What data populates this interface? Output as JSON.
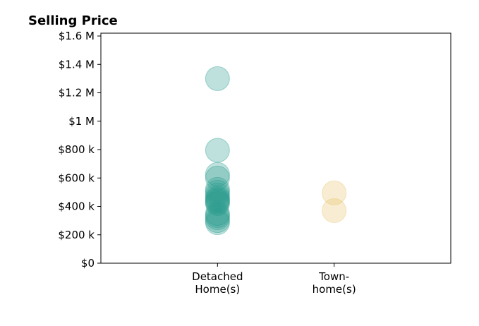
{
  "chart_data": {
    "type": "scatter",
    "title": "Selling Price",
    "xlabel": "",
    "ylabel": "",
    "categories": [
      {
        "label_lines": [
          "Detached",
          "Home(s)"
        ],
        "color": "#2a9d8f"
      },
      {
        "label_lines": [
          "Town-",
          "home(s)"
        ],
        "color": "#e9c46a"
      }
    ],
    "y_ticks": [
      {
        "value": 0,
        "label": "$0"
      },
      {
        "value": 200000,
        "label": "$200 k"
      },
      {
        "value": 400000,
        "label": "$400 k"
      },
      {
        "value": 600000,
        "label": "$600 k"
      },
      {
        "value": 800000,
        "label": "$800 k"
      },
      {
        "value": 1000000,
        "label": "$1 M"
      },
      {
        "value": 1200000,
        "label": "$1.2 M"
      },
      {
        "value": 1400000,
        "label": "$1.4 M"
      },
      {
        "value": 1600000,
        "label": "$1.6 M"
      }
    ],
    "ylim": [
      0,
      1620000
    ],
    "xlim": [
      -1,
      2
    ],
    "grid": false,
    "legend": "none",
    "series": [
      {
        "category_index": 0,
        "values": [
          1300000,
          795000,
          625000,
          600000,
          520000,
          500000,
          480000,
          460000,
          450000,
          440000,
          430000,
          420000,
          350000,
          335000,
          320000,
          300000,
          285000
        ]
      },
      {
        "category_index": 1,
        "values": [
          495000,
          370000
        ]
      }
    ]
  }
}
